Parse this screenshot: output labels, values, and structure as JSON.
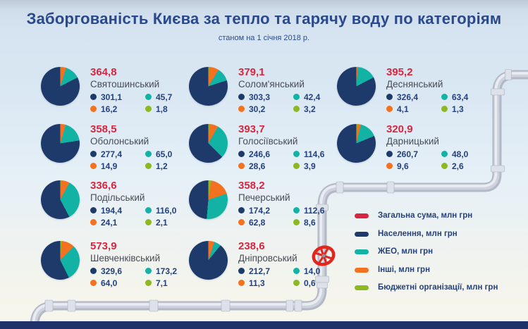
{
  "header": {
    "title": "Заборгованість Києва за тепло та гарячу воду по категоріям",
    "subtitle": "станом на 1 січня 2018 р."
  },
  "colors": {
    "total": "#d7263f",
    "population": "#1e3a6b",
    "zheo": "#12b2a4",
    "other": "#f4711f",
    "budget": "#8cb821",
    "valve": "#e3261d",
    "bottom_bar": "#1e3168"
  },
  "legend": {
    "items": [
      {
        "key": "total",
        "label": "Загальна сума, млн грн"
      },
      {
        "key": "population",
        "label": "Населення, млн грн"
      },
      {
        "key": "zheo",
        "label": "ЖЕО, млн грн"
      },
      {
        "key": "other",
        "label": "Інші, млн грн"
      },
      {
        "key": "budget",
        "label": "Бюджетні організації, млн грн"
      }
    ]
  },
  "chart_data": {
    "type": "pie",
    "unit": "млн грн",
    "note": "decimal comma formatting as displayed",
    "category_keys": [
      "population",
      "zheo",
      "other",
      "budget"
    ],
    "category_labels": [
      "Населення",
      "ЖЕО",
      "Інші",
      "Бюджетні організації"
    ],
    "districts": [
      {
        "name": "Святошинський",
        "total": "364,8",
        "population": "301,1",
        "zheo": "45,7",
        "other": "16,2",
        "budget": "1,8"
      },
      {
        "name": "Солом'янський",
        "total": "379,1",
        "population": "303,3",
        "zheo": "42,4",
        "other": "30,2",
        "budget": "3,2"
      },
      {
        "name": "Деснянський",
        "total": "395,2",
        "population": "326,4",
        "zheo": "63,4",
        "other": "4,1",
        "budget": "1,3"
      },
      {
        "name": "Оболонський",
        "total": "358,5",
        "population": "277,4",
        "zheo": "65,0",
        "other": "14,9",
        "budget": "1,2"
      },
      {
        "name": "Голосіївський",
        "total": "393,7",
        "population": "246,6",
        "zheo": "114,6",
        "other": "28,6",
        "budget": "3,9"
      },
      {
        "name": "Дарницький",
        "total": "320,9",
        "population": "260,7",
        "zheo": "48,0",
        "other": "9,6",
        "budget": "2,6"
      },
      {
        "name": "Подільський",
        "total": "336,6",
        "population": "194,4",
        "zheo": "116,0",
        "other": "24,1",
        "budget": "2,1"
      },
      {
        "name": "Печерський",
        "total": "358,2",
        "population": "174,2",
        "zheo": "112,6",
        "other": "62,8",
        "budget": "8,6"
      },
      {
        "name": "Шевченківський",
        "total": "573,9",
        "population": "329,6",
        "zheo": "173,2",
        "other": "64,0",
        "budget": "7,1"
      },
      {
        "name": "Дніпровський",
        "total": "238,6",
        "population": "212,7",
        "zheo": "14,0",
        "other": "11,3",
        "budget": "0,6"
      }
    ]
  }
}
